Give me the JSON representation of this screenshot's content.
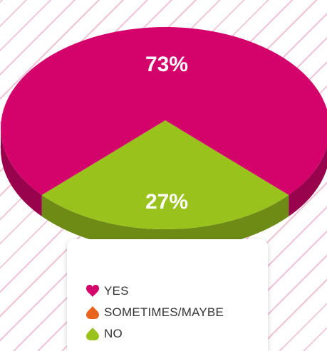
{
  "chart_data": {
    "type": "pie",
    "categories": [
      "YES",
      "SOMETIMES/MAYBE",
      "NO"
    ],
    "values": [
      73,
      0,
      27
    ],
    "data_labels": [
      "73%",
      "",
      "27%"
    ],
    "colors": [
      "#d4036b",
      "#e8631c",
      "#99c21d"
    ],
    "legend_position": "bottom"
  }
}
